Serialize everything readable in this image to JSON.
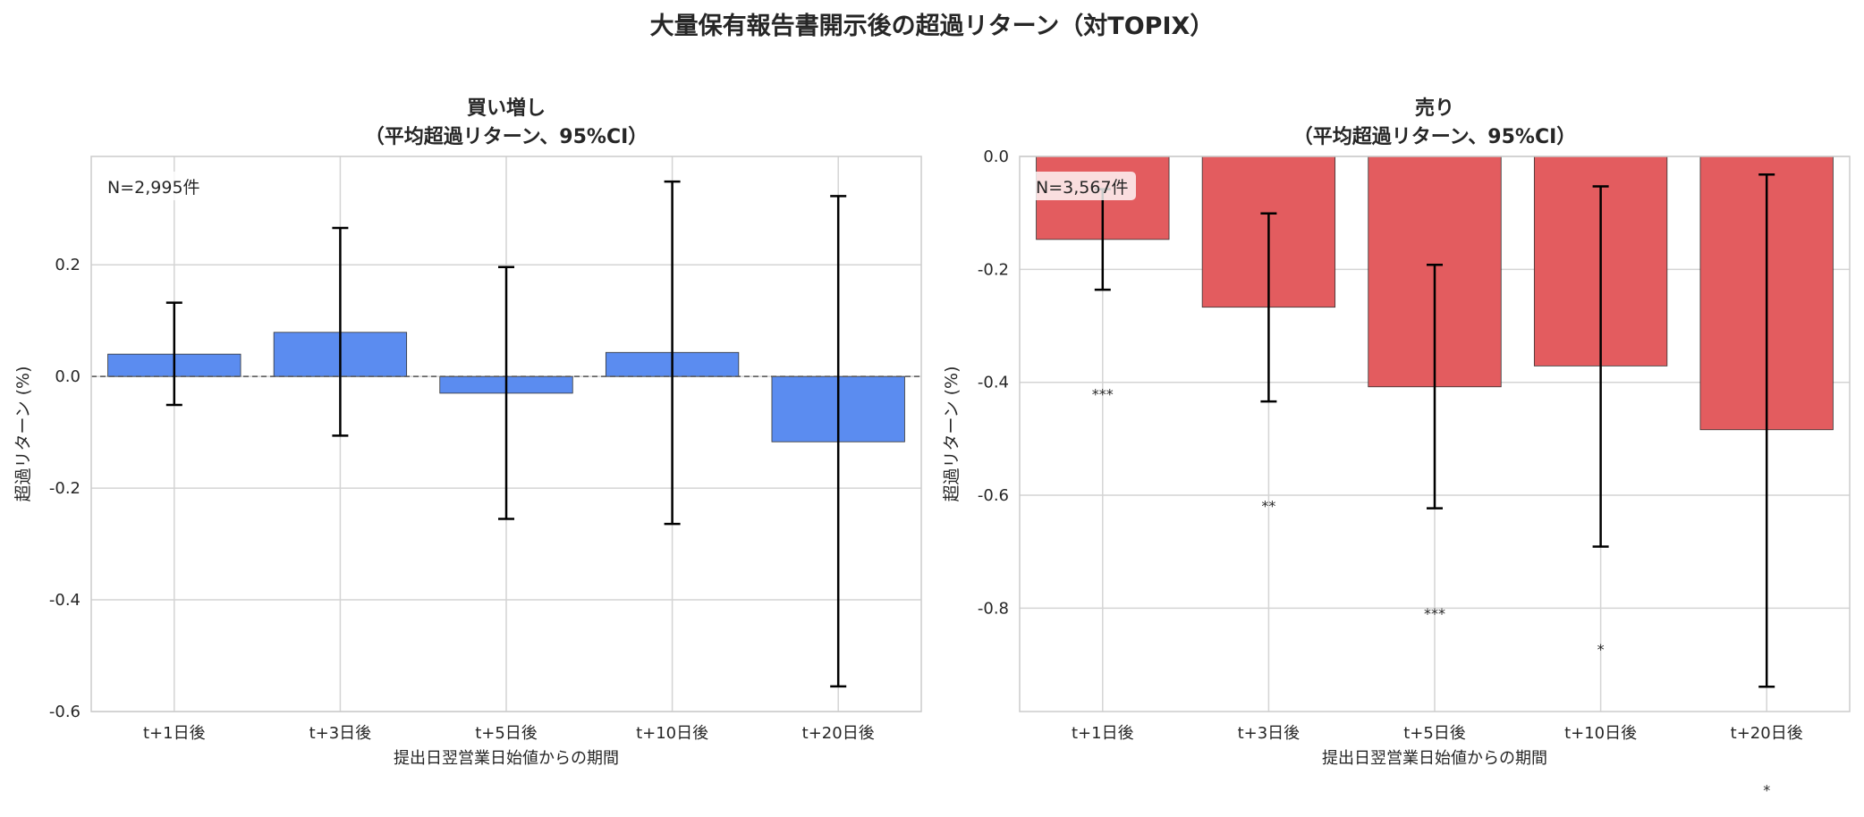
{
  "figure_title": "大量保有報告書開示後の超過リターン（対TOPIX）",
  "chart_data": [
    {
      "type": "bar",
      "title_line1": "買い増し",
      "title_line2": "（平均超過リターン、95%CI）",
      "xlabel": "提出日翌営業日始値からの期間",
      "ylabel": "超過リターン (%)",
      "categories": [
        "t+1日後",
        "t+3日後",
        "t+5日後",
        "t+10日後",
        "t+20日後"
      ],
      "values": [
        0.04,
        0.079,
        -0.03,
        0.043,
        -0.117
      ],
      "ci_lower": [
        -0.051,
        -0.106,
        -0.255,
        -0.264,
        -0.555
      ],
      "ci_upper": [
        0.132,
        0.266,
        0.196,
        0.349,
        0.323
      ],
      "yticks": [
        0.2,
        0.0,
        -0.2,
        -0.4,
        -0.6
      ],
      "ytick_labels": [
        "0.2",
        "0.0",
        "-0.2",
        "-0.4",
        "-0.6"
      ],
      "ylim": [
        -0.6,
        0.394
      ],
      "zero_line": true,
      "grid": true,
      "annotation": "N=2,995件",
      "annotation_placement": "top-left",
      "significance": [],
      "color": "#5B8CF0"
    },
    {
      "type": "bar",
      "title_line1": "売り",
      "title_line2": "（平均超過リターン、95%CI）",
      "xlabel": "提出日翌営業日始値からの期間",
      "ylabel": "超過リターン (%)",
      "categories": [
        "t+1日後",
        "t+3日後",
        "t+5日後",
        "t+10日後",
        "t+20日後"
      ],
      "values": [
        -0.147,
        -0.267,
        -0.408,
        -0.371,
        -0.484
      ],
      "ci_lower": [
        -0.236,
        -0.434,
        -0.623,
        -0.691,
        -0.939
      ],
      "ci_upper": [
        -0.058,
        -0.101,
        -0.192,
        -0.053,
        -0.032
      ],
      "yticks": [
        0.0,
        -0.2,
        -0.4,
        -0.6,
        -0.8
      ],
      "ytick_labels": [
        "0.0",
        "-0.2",
        "-0.4",
        "-0.6",
        "-0.8"
      ],
      "ylim": [
        -0.983,
        0.0
      ],
      "zero_line": false,
      "grid": true,
      "annotation": "N=3,567件",
      "annotation_placement": "top-left",
      "significance": [
        {
          "label": "***",
          "y": -0.417
        },
        {
          "label": "**",
          "y": -0.615
        },
        {
          "label": "***",
          "y": -0.806
        },
        {
          "label": "*",
          "y": -0.869
        },
        {
          "label": "*",
          "y": -1.118
        }
      ],
      "color": "#E35C5F"
    }
  ]
}
